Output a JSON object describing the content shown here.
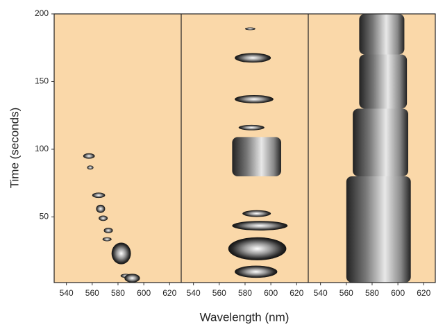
{
  "chart_data": {
    "type": "spots",
    "xlabel": "Wavelength (nm)",
    "ylabel": "Time (seconds)",
    "xlim": [
      530.5,
      629
    ],
    "xticks": [
      540,
      560,
      580,
      600,
      620
    ],
    "ylim": [
      1.5,
      200
    ],
    "yticks": [
      50,
      100,
      150,
      200
    ],
    "background": "#fad8a9",
    "panels": [
      {
        "spots": [
          {
            "x": [
              553,
              562
            ],
            "y": [
              93,
              97
            ]
          },
          {
            "x": [
              556,
              561
            ],
            "y": [
              85,
              88
            ]
          },
          {
            "x": [
              560,
              570
            ],
            "y": [
              64,
              68
            ]
          },
          {
            "x": [
              563,
              570
            ],
            "y": [
              53,
              59
            ]
          },
          {
            "x": [
              565,
              572
            ],
            "y": [
              47,
              51
            ]
          },
          {
            "x": [
              569,
              576
            ],
            "y": [
              38,
              42
            ]
          },
          {
            "x": [
              568,
              575
            ],
            "y": [
              32,
              35
            ]
          },
          {
            "x": [
              575,
              590
            ],
            "y": [
              15,
              31
            ]
          },
          {
            "x": [
              582,
              590
            ],
            "y": [
              5,
              8
            ]
          },
          {
            "x": [
              585,
              597
            ],
            "y": [
              1.5,
              8
            ]
          }
        ]
      },
      {
        "spots": [
          {
            "x": [
              580,
              588
            ],
            "y": [
              188,
              190
            ]
          },
          {
            "x": [
              572,
              600
            ],
            "y": [
              164,
              171
            ]
          },
          {
            "x": [
              572,
              602
            ],
            "y": [
              134,
              140
            ]
          },
          {
            "x": [
              575,
              595
            ],
            "y": [
              114,
              118
            ]
          },
          {
            "x": [
              570,
              608
            ],
            "y": [
              80,
              109
            ]
          },
          {
            "x": [
              578,
              600
            ],
            "y": [
              50,
              55
            ]
          },
          {
            "x": [
              570,
              613
            ],
            "y": [
              40,
              47
            ]
          },
          {
            "x": [
              567,
              612
            ],
            "y": [
              18,
              35
            ]
          },
          {
            "x": [
              572,
              605
            ],
            "y": [
              5,
              14
            ]
          }
        ]
      },
      {
        "spots": [
          {
            "x": [
              570,
              605
            ],
            "y": [
              170,
              200
            ]
          },
          {
            "x": [
              570,
              607
            ],
            "y": [
              130,
              170
            ]
          },
          {
            "x": [
              565,
              608
            ],
            "y": [
              80,
              130
            ]
          },
          {
            "x": [
              560,
              610
            ],
            "y": [
              1.5,
              80
            ]
          }
        ]
      }
    ]
  }
}
